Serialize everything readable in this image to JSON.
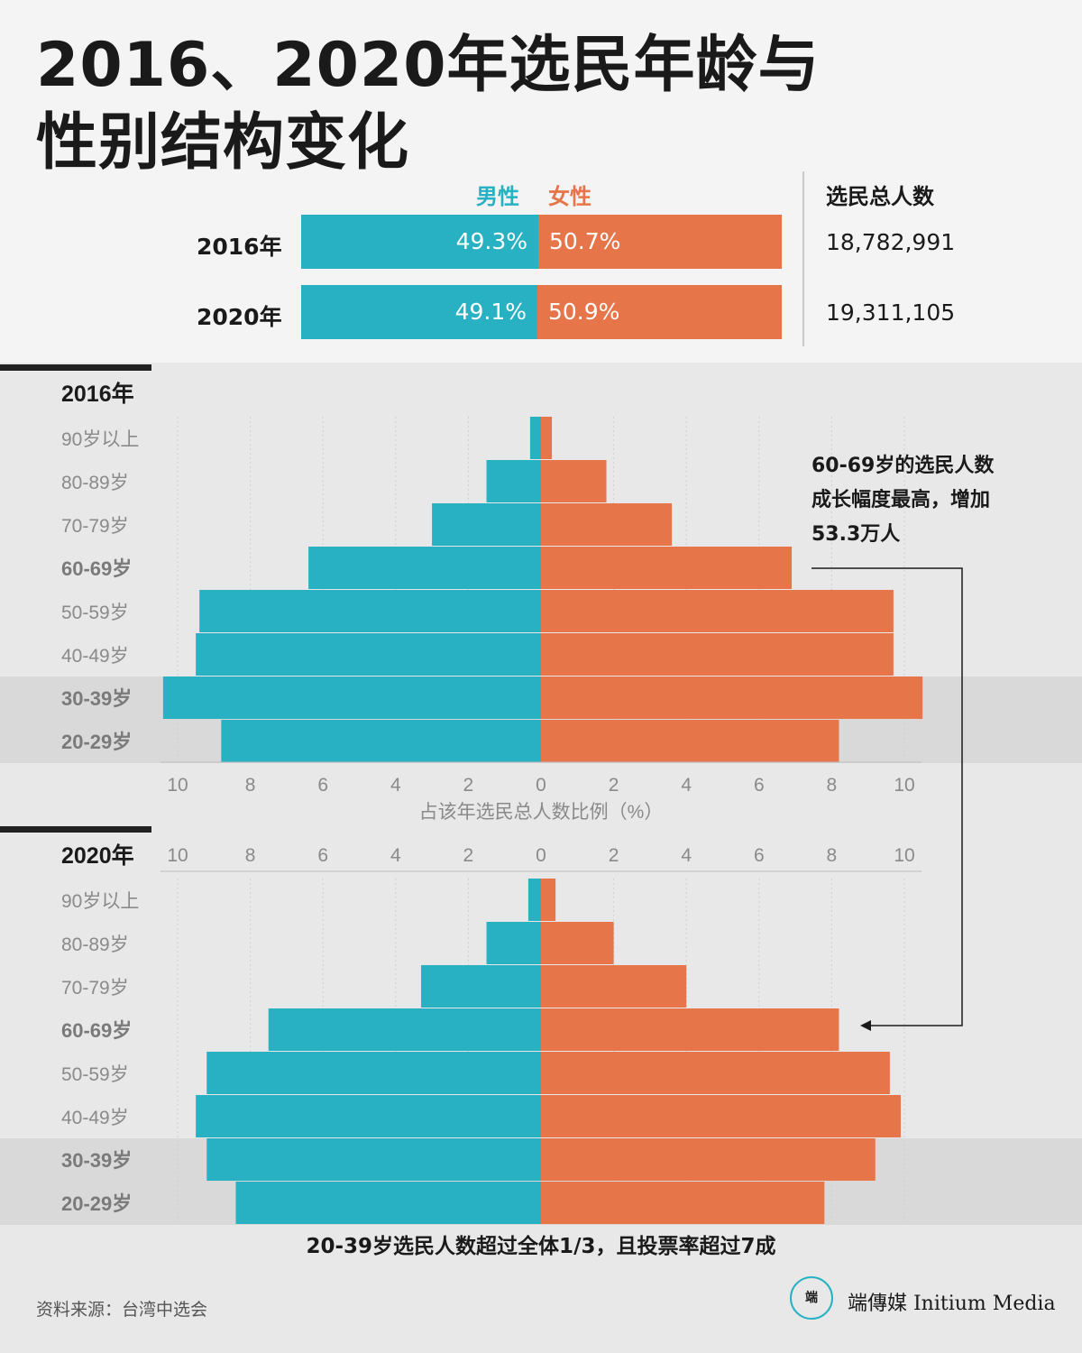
{
  "title": {
    "line1": "2016、2020年选民年龄与",
    "line2": "性别结构变化"
  },
  "legend": {
    "male": "男性",
    "female": "女性",
    "male_color": "#27b1c3",
    "female_color": "#e6754a"
  },
  "split": {
    "total_header": "选民总人数",
    "rows": [
      {
        "year": "2016年",
        "male_label": "49.3%",
        "female_label": "50.7%",
        "male": 49.3,
        "female": 50.7,
        "total": "18,782,991"
      },
      {
        "year": "2020年",
        "male_label": "49.1%",
        "female_label": "50.9%",
        "male": 49.1,
        "female": 50.9,
        "total": "19,311,105"
      }
    ]
  },
  "chart_data": {
    "type": "bar",
    "orientation": "horizontal",
    "xlabel": "占该年选民总人数比例（%）",
    "xlim": [
      -10.5,
      10.5
    ],
    "xticks": [
      10,
      8,
      6,
      4,
      2,
      0,
      2,
      4,
      6,
      8,
      10
    ],
    "categories": [
      "90岁以上",
      "80-89岁",
      "70-79岁",
      "60-69岁",
      "50-59岁",
      "40-49岁",
      "30-39岁",
      "20-29岁"
    ],
    "bold_categories": [
      "60-69岁",
      "30-39岁",
      "20-29岁"
    ],
    "highlight_categories": [
      "30-39岁",
      "20-29岁"
    ],
    "panels": [
      {
        "label": "2016年",
        "series": [
          {
            "name": "男性",
            "values": [
              0.3,
              1.5,
              3.0,
              6.4,
              9.4,
              9.5,
              10.4,
              8.8
            ]
          },
          {
            "name": "女性",
            "values": [
              0.3,
              1.8,
              3.6,
              6.9,
              9.7,
              9.7,
              10.5,
              8.2
            ]
          }
        ]
      },
      {
        "label": "2020年",
        "series": [
          {
            "name": "男性",
            "values": [
              0.35,
              1.5,
              3.3,
              7.5,
              9.2,
              9.5,
              9.2,
              8.4
            ]
          },
          {
            "name": "女性",
            "values": [
              0.4,
              2.0,
              4.0,
              8.2,
              9.6,
              9.9,
              9.2,
              7.8
            ]
          }
        ]
      }
    ],
    "annotation": "60-69岁的选民人数成长幅度最高，增加53.3万人"
  },
  "annotation_lines": [
    "60-69岁的选民人数",
    "成长幅度最高，增加",
    "53.3万人"
  ],
  "footer_note": "20-39岁选民人数超过全体1/3，且投票率超过7成",
  "source": "资料来源：台湾中选会",
  "brand": {
    "name": "端傳媒 Initium Media",
    "logo_glyph": "端"
  }
}
